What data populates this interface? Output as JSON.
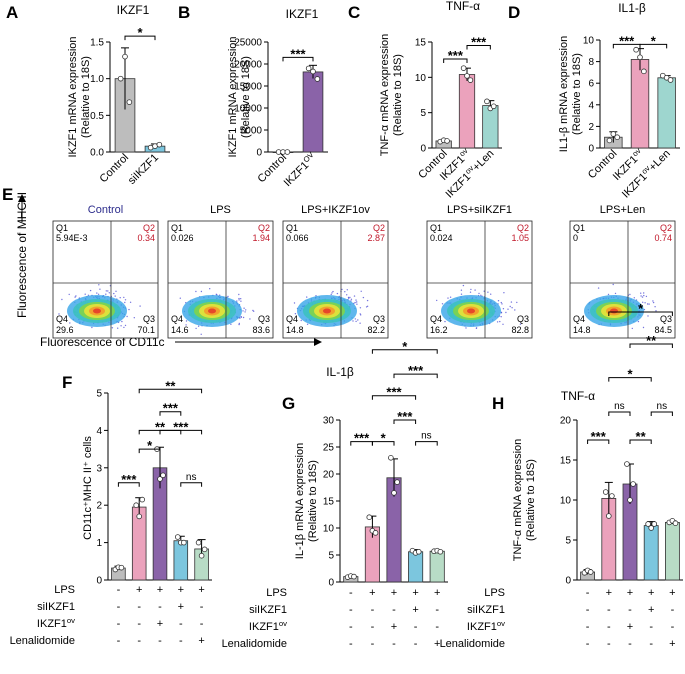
{
  "figure": {
    "flow_labels": {
      "y_axis": "Fluorescence of MHC II",
      "x_axis": "Fluorescence of CD11c"
    },
    "standalone_titles": {
      "G": "IL-1β",
      "H": "TNF-α"
    }
  },
  "colors": {
    "gray": "#bdbdbd",
    "blue": "#7cc6de",
    "purple": "#8a63a8",
    "pink": "#eba2bc",
    "teal": "#9ed6cf",
    "green": "#b8dcc6",
    "control_title": "#2c2c8c",
    "quadrant_red": "#c0182a"
  },
  "flow": [
    {
      "title": "Control",
      "title_color": "#2c2c8c",
      "q1_label": "Q1",
      "q1": "5.94E-3",
      "q2_label": "Q2",
      "q2": "0.34",
      "q3_label": "Q3",
      "q3": "70.1",
      "q4_label": "Q4",
      "q4": "29.6"
    },
    {
      "title": "LPS",
      "title_color": "#000000",
      "q1_label": "Q1",
      "q1": "0.026",
      "q2_label": "Q2",
      "q2": "1.94",
      "q3_label": "Q3",
      "q3": "83.6",
      "q4_label": "Q4",
      "q4": "14.6"
    },
    {
      "title": "LPS+IKZF1ov",
      "title_color": "#000000",
      "q1_label": "Q1",
      "q1": "0.066",
      "q2_label": "Q2",
      "q2": "2.87",
      "q3_label": "Q3",
      "q3": "82.2",
      "q4_label": "Q4",
      "q4": "14.8"
    },
    {
      "title": "LPS+siIKZF1",
      "title_color": "#000000",
      "q1_label": "Q1",
      "q1": "0.024",
      "q2_label": "Q2",
      "q2": "1.05",
      "q3_label": "Q3",
      "q3": "82.8",
      "q4_label": "Q4",
      "q4": "16.2"
    },
    {
      "title": "LPS+Len",
      "title_color": "#000000",
      "q1_label": "Q1",
      "q1": "0",
      "q2_label": "Q2",
      "q2": "0.74",
      "q3_label": "Q3",
      "q3": "84.5",
      "q4_label": "Q4",
      "q4": "14.8"
    }
  ],
  "chart_data": [
    {
      "panel": "A",
      "type": "bar",
      "title": "IKZF1",
      "ylabel": "IKZF1 mRNA expression",
      "ylabel2": "(Relative to 18S)",
      "ylim": [
        0,
        1.5
      ],
      "yticks": [
        "0.0",
        "0.5",
        "1.0",
        "1.5"
      ],
      "ytick_values": [
        0,
        0.5,
        1.0,
        1.5
      ],
      "categories": [
        "Control",
        "siIKZF1"
      ],
      "values": [
        1.0,
        0.08
      ],
      "errors": [
        0.42,
        0.03
      ],
      "points": [
        [
          1.0,
          1.3,
          0.68
        ],
        [
          0.06,
          0.08,
          0.1
        ]
      ],
      "colors": [
        "#bdbdbd",
        "#7cc6de"
      ],
      "sig": [
        {
          "from": 0,
          "to": 1,
          "label": "*",
          "level": 1.58
        }
      ]
    },
    {
      "panel": "B",
      "type": "bar",
      "title": "IKZF1",
      "ylabel": "IKZF1 mRNA expression",
      "ylabel2": "(Relative to 18S)",
      "ylim": [
        0,
        25000
      ],
      "yticks": [
        "0",
        "5000",
        "10000",
        "15000",
        "20000",
        "25000"
      ],
      "ytick_values": [
        0,
        5000,
        10000,
        15000,
        20000,
        25000
      ],
      "categories": [
        "Control",
        "IKZF1ov"
      ],
      "cat_base": [
        "Control",
        "IKZF1"
      ],
      "cat_sup": [
        "",
        "OV"
      ],
      "values": [
        0,
        18200
      ],
      "errors": [
        0,
        1500
      ],
      "points": [
        [
          0,
          0,
          0
        ],
        [
          19000,
          18300,
          16600
        ]
      ],
      "colors": [
        "#bdbdbd",
        "#8a63a8"
      ],
      "sig": [
        {
          "from": 0,
          "to": 1,
          "label": "***",
          "level": 21500
        }
      ]
    },
    {
      "panel": "C",
      "type": "bar",
      "title": "TNF-α",
      "ylabel": "TNF-α mRNA expression",
      "ylabel2": "(Relative to 18S)",
      "ylim": [
        0,
        15
      ],
      "yticks": [
        "0",
        "5",
        "10",
        "15"
      ],
      "ytick_values": [
        0,
        5,
        10,
        15
      ],
      "categories": [
        "Control",
        "IKZF1ov",
        "IKZF1ov+Len"
      ],
      "cat_base": [
        "Control",
        "IKZF1",
        "IKZF1"
      ],
      "cat_sup": [
        "",
        "ov",
        "ov"
      ],
      "cat_tail": [
        "",
        "",
        "+Len"
      ],
      "values": [
        1.0,
        10.4,
        6.0
      ],
      "errors": [
        0.2,
        0.9,
        0.7
      ],
      "points": [
        [
          0.9,
          1.1,
          1.0
        ],
        [
          11.3,
          10.2,
          9.6
        ],
        [
          6.6,
          5.6,
          5.9
        ]
      ],
      "colors": [
        "#bdbdbd",
        "#eba2bc",
        "#9ed6cf"
      ],
      "sig": [
        {
          "from": 0,
          "to": 1,
          "label": "***",
          "level": 12.6
        },
        {
          "from": 1,
          "to": 2,
          "label": "***",
          "level": 14.5
        }
      ]
    },
    {
      "panel": "D",
      "type": "bar",
      "title": "IL1-β",
      "ylabel": "IL1-β mRNA expression",
      "ylabel2": "(Relative to 18S)",
      "ylim": [
        0,
        10
      ],
      "yticks": [
        "0",
        "2",
        "4",
        "6",
        "8",
        "10"
      ],
      "ytick_values": [
        0,
        2,
        4,
        6,
        8,
        10
      ],
      "categories": [
        "Control",
        "IKZF1ov",
        "IKZF1ov+Len"
      ],
      "cat_base": [
        "Control",
        "IKZF1",
        "IKZF1"
      ],
      "cat_sup": [
        "",
        "ov",
        "ov"
      ],
      "cat_tail": [
        "",
        "",
        "+Len"
      ],
      "values": [
        1.0,
        8.2,
        6.5
      ],
      "errors": [
        0.5,
        1.0,
        0.2
      ],
      "points": [
        [
          0.7,
          1.3,
          1.0
        ],
        [
          9.1,
          8.4,
          7.1
        ],
        [
          6.7,
          6.5,
          6.3
        ]
      ],
      "colors": [
        "#bdbdbd",
        "#eba2bc",
        "#9ed6cf"
      ],
      "sig": [
        {
          "from": 0,
          "to": 1,
          "label": "***",
          "level": 9.6
        },
        {
          "from": 1,
          "to": 2,
          "label": "*",
          "level": 9.6
        }
      ]
    },
    {
      "panel": "F",
      "type": "bar",
      "title": "",
      "ylabel": "CD11c⁺MHC II⁺ cells",
      "ylabel2": "",
      "ylim": [
        0,
        5
      ],
      "yticks": [
        "0",
        "1",
        "2",
        "3",
        "4",
        "5"
      ],
      "ytick_values": [
        0,
        1,
        2,
        3,
        4,
        5
      ],
      "categories": [
        "Control",
        "LPS",
        "LPS+IKZF1ov",
        "LPS+siIKZF1",
        "LPS+Lenalidomide"
      ],
      "values": [
        0.32,
        1.95,
        3.0,
        1.05,
        0.83
      ],
      "errors": [
        0.05,
        0.25,
        0.55,
        0.12,
        0.25
      ],
      "points": [
        [
          0.28,
          0.34,
          0.33
        ],
        [
          2.0,
          1.7,
          2.15
        ],
        [
          3.5,
          2.7,
          2.8
        ],
        [
          1.15,
          1.0,
          1.0
        ],
        [
          1.0,
          0.65,
          0.82
        ]
      ],
      "colors": [
        "#bdbdbd",
        "#eba2bc",
        "#8a63a8",
        "#7cc6de",
        "#b8dcc6"
      ],
      "sig": [
        {
          "from": 0,
          "to": 1,
          "label": "***",
          "level": 2.6
        },
        {
          "from": 1,
          "to": 2,
          "label": "*",
          "level": 3.5
        },
        {
          "from": 1,
          "to": 3,
          "label": "**",
          "level": 4.0
        },
        {
          "from": 3,
          "to": 4,
          "label": "ns",
          "level": 2.6
        },
        {
          "from": 2,
          "to": 3,
          "label": "***",
          "level": 4.5
        },
        {
          "from": 2,
          "to": 4,
          "label": "***",
          "level": 4.0
        },
        {
          "from": 1,
          "to": 4,
          "label": "**",
          "level": 5.1
        }
      ],
      "conditions": [
        {
          "name": "LPS",
          "values": [
            "-",
            "+",
            "+",
            "+",
            "+"
          ]
        },
        {
          "name": "siIKZF1",
          "values": [
            "-",
            "-",
            "-",
            "+",
            "-"
          ]
        },
        {
          "name": "IKZF1ov",
          "base": "IKZF1",
          "sup": "ov",
          "values": [
            "-",
            "-",
            "+",
            "-",
            "-"
          ]
        },
        {
          "name": "Lenalidomide",
          "values": [
            "-",
            "-",
            "-",
            "-",
            "+"
          ]
        }
      ]
    },
    {
      "panel": "G",
      "type": "bar",
      "title": "IL-1β",
      "ylabel": "IL-1β mRNA expression",
      "ylabel2": "(Relative to 18S)",
      "ylim": [
        0,
        30
      ],
      "yticks": [
        "0",
        "5",
        "10",
        "15",
        "20",
        "25",
        "30"
      ],
      "ytick_values": [
        0,
        5,
        10,
        15,
        20,
        25,
        30
      ],
      "categories": [
        "Control",
        "LPS",
        "LPS+IKZF1ov",
        "LPS+siIKZF1",
        "LPS+Lenalidomide"
      ],
      "values": [
        1.0,
        10.2,
        19.3,
        5.6,
        5.7
      ],
      "errors": [
        0.3,
        2.0,
        3.5,
        0.4,
        0.2
      ],
      "points": [
        [
          0.9,
          1.1,
          1.0
        ],
        [
          12.0,
          9.5,
          9.1
        ],
        [
          23.0,
          16.5,
          18.5
        ],
        [
          5.8,
          5.4,
          5.6
        ],
        [
          5.7,
          5.8,
          5.6
        ]
      ],
      "colors": [
        "#bdbdbd",
        "#eba2bc",
        "#8a63a8",
        "#7cc6de",
        "#b8dcc6"
      ],
      "sig": [
        {
          "from": 0,
          "to": 1,
          "label": "***",
          "level": 26
        },
        {
          "from": 1,
          "to": 2,
          "label": "*",
          "level": 26
        },
        {
          "from": 1,
          "to": 3,
          "label": "***",
          "level": 34.5
        },
        {
          "from": 3,
          "to": 4,
          "label": "ns",
          "level": 26
        },
        {
          "from": 2,
          "to": 3,
          "label": "***",
          "level": 30
        },
        {
          "from": 2,
          "to": 4,
          "label": "***",
          "level": 38.5
        },
        {
          "from": 1,
          "to": 4,
          "label": "*",
          "level": 43
        }
      ],
      "conditions": [
        {
          "name": "LPS",
          "values": [
            "-",
            "+",
            "+",
            "+",
            "+"
          ]
        },
        {
          "name": "siIKZF1",
          "values": [
            "-",
            "-",
            "-",
            "+",
            "-"
          ]
        },
        {
          "name": "IKZF1ov",
          "base": "IKZF1",
          "sup": "ov",
          "values": [
            "-",
            "-",
            "+",
            "-",
            "-"
          ]
        },
        {
          "name": "Lenalidomide",
          "values": [
            "-",
            "-",
            "-",
            "-",
            "+"
          ]
        }
      ]
    },
    {
      "panel": "H",
      "type": "bar",
      "title": "TNF-α",
      "ylabel": "TNF-α mRNA expression",
      "ylabel2": "(Relative to 18S)",
      "ylim": [
        0,
        20
      ],
      "yticks": [
        "0",
        "5",
        "10",
        "15",
        "20"
      ],
      "ytick_values": [
        0,
        5,
        10,
        15,
        20
      ],
      "categories": [
        "Control",
        "LPS",
        "LPS+IKZF1ov",
        "LPS+siIKZF1",
        "LPS+Lenalidomide"
      ],
      "values": [
        1.0,
        10.2,
        12.0,
        6.8,
        7.2
      ],
      "errors": [
        0.3,
        2.0,
        2.5,
        0.5,
        0.2
      ],
      "points": [
        [
          0.9,
          1.2,
          1.0
        ],
        [
          11.0,
          8.0,
          10.5
        ],
        [
          14.5,
          10.0,
          12.0
        ],
        [
          7.0,
          6.5,
          7.0
        ],
        [
          7.2,
          7.4,
          7.1
        ]
      ],
      "colors": [
        "#bdbdbd",
        "#eba2bc",
        "#8a63a8",
        "#7cc6de",
        "#b8dcc6"
      ],
      "sig": [
        {
          "from": 0,
          "to": 1,
          "label": "***",
          "level": 17.5
        },
        {
          "from": 1,
          "to": 2,
          "label": "ns",
          "level": 21
        },
        {
          "from": 1,
          "to": 3,
          "label": "*",
          "level": 25.3
        },
        {
          "from": 2,
          "to": 3,
          "label": "**",
          "level": 17.5
        },
        {
          "from": 3,
          "to": 4,
          "label": "ns",
          "level": 21
        },
        {
          "from": 2,
          "to": 4,
          "label": "**",
          "level": 29.5
        },
        {
          "from": 1,
          "to": 4,
          "label": "*",
          "level": 33.5
        }
      ],
      "conditions": [
        {
          "name": "LPS",
          "values": [
            "-",
            "+",
            "+",
            "+",
            "+"
          ]
        },
        {
          "name": "siIKZF1",
          "values": [
            "-",
            "-",
            "-",
            "+",
            "-"
          ]
        },
        {
          "name": "IKZF1ov",
          "base": "IKZF1",
          "sup": "ov",
          "values": [
            "-",
            "-",
            "+",
            "-",
            "-"
          ]
        },
        {
          "name": "Lenalidomide",
          "values": [
            "-",
            "-",
            "-",
            "-",
            "+"
          ]
        }
      ]
    }
  ]
}
